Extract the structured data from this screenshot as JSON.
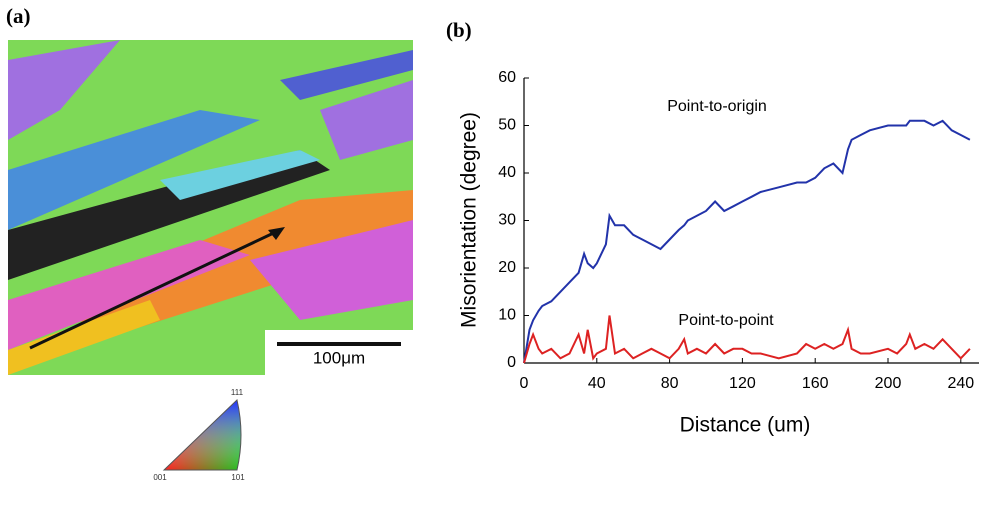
{
  "figure": {
    "panel_a": {
      "label": "(a)",
      "scale_bar": "100μm",
      "triangle": {
        "top": "111",
        "left": "001",
        "right": "101"
      }
    },
    "panel_b": {
      "label": "(b)"
    }
  },
  "chart_data": {
    "type": "line",
    "x_label": "Distance (um)",
    "y_label": "Misorientation (degree)",
    "annotations": [
      "Point-to-origin",
      "Point-to-point"
    ],
    "x": [
      0,
      3,
      5,
      8,
      10,
      15,
      20,
      25,
      30,
      33,
      35,
      38,
      40,
      45,
      47,
      50,
      55,
      60,
      65,
      70,
      75,
      80,
      85,
      88,
      90,
      95,
      100,
      105,
      110,
      115,
      120,
      125,
      130,
      140,
      150,
      155,
      160,
      165,
      170,
      175,
      178,
      180,
      185,
      190,
      200,
      205,
      210,
      212,
      215,
      220,
      225,
      230,
      235,
      240,
      245
    ],
    "series": [
      {
        "name": "Point-to-origin",
        "color": "#2233aa",
        "values": [
          0,
          7,
          9,
          11,
          12,
          13,
          15,
          17,
          19,
          23,
          21,
          20,
          21,
          25,
          31,
          29,
          29,
          27,
          26,
          25,
          24,
          26,
          28,
          29,
          30,
          31,
          32,
          34,
          32,
          33,
          34,
          35,
          36,
          37,
          38,
          38,
          39,
          41,
          42,
          40,
          45,
          47,
          48,
          49,
          50,
          50,
          50,
          51,
          51,
          51,
          50,
          51,
          49,
          48,
          47
        ]
      },
      {
        "name": "Point-to-point",
        "color": "#dd2222",
        "values": [
          0,
          4,
          6,
          3,
          2,
          3,
          1,
          2,
          6,
          2,
          7,
          1,
          2,
          3,
          10,
          2,
          3,
          1,
          2,
          3,
          2,
          1,
          3,
          5,
          2,
          3,
          2,
          4,
          2,
          3,
          3,
          2,
          2,
          1,
          2,
          4,
          3,
          4,
          3,
          4,
          7,
          3,
          2,
          2,
          3,
          2,
          4,
          6,
          3,
          4,
          3,
          5,
          3,
          1,
          3
        ]
      }
    ],
    "xlim": [
      0,
      250
    ],
    "xticks": [
      0,
      40,
      80,
      120,
      160,
      200,
      240
    ],
    "ylim": [
      0,
      60
    ],
    "yticks": [
      0,
      10,
      20,
      30,
      40,
      50,
      60
    ]
  }
}
